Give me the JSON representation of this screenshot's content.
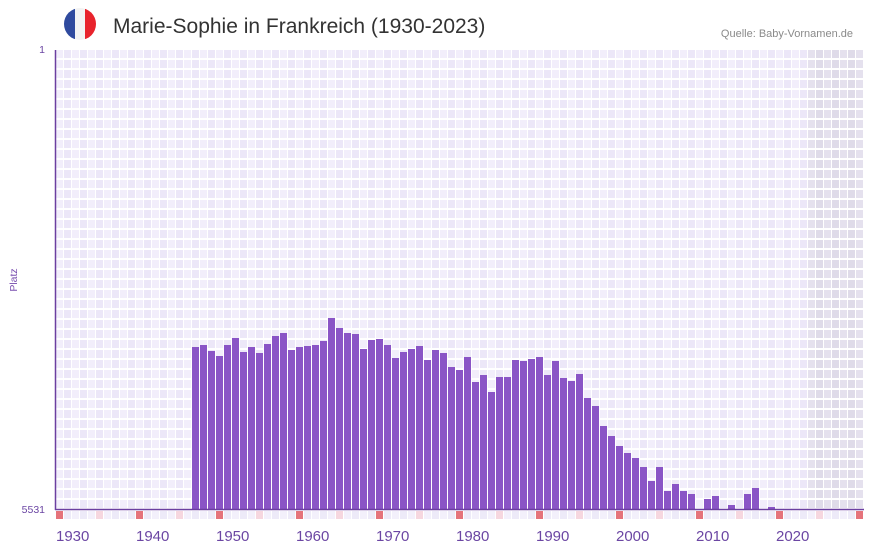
{
  "header": {
    "flag_icon": "france-flag-icon",
    "title": "Marie-Sophie in Frankreich (1930-2023)",
    "source": "Quelle: Baby-Vornamen.de"
  },
  "colors": {
    "bar": "#8a55c6",
    "axis": "#6b3fa0",
    "grid_a": "#f2eefb",
    "grid_b": "#ece7f8",
    "grid_future_a": "#e5e1ee",
    "grid_future_b": "#dfdbe9",
    "marker_decade": "#e5737b",
    "marker_half_decade": "#f6d7df",
    "marker_base_a": "#f3f0fb",
    "marker_base_b": "#edeaf8",
    "flag_blue": "#2f4a9e",
    "flag_white": "#f3f3f3",
    "flag_red": "#e8232c"
  },
  "chart_data": {
    "type": "bar",
    "title": "Marie-Sophie in Frankreich (1930-2023)",
    "source": "Quelle: Baby-Vornamen.de",
    "xlabel": "",
    "ylabel": "Platz",
    "y_inverted": true,
    "ylim": [
      5531,
      1
    ],
    "xlim": [
      1930,
      2030
    ],
    "data_range": [
      1930,
      2023
    ],
    "y_tick_labels": [
      "1",
      "5531"
    ],
    "x_tick_labels": [
      "1930",
      "1940",
      "1950",
      "1960",
      "1970",
      "1980",
      "1990",
      "2000",
      "2010",
      "2020"
    ],
    "grid": true,
    "legend": null,
    "categories": [
      1947,
      1948,
      1949,
      1950,
      1951,
      1952,
      1953,
      1954,
      1955,
      1956,
      1957,
      1958,
      1959,
      1960,
      1961,
      1962,
      1963,
      1964,
      1965,
      1966,
      1967,
      1968,
      1969,
      1970,
      1971,
      1972,
      1973,
      1974,
      1975,
      1976,
      1977,
      1978,
      1979,
      1980,
      1981,
      1982,
      1983,
      1984,
      1985,
      1986,
      1987,
      1988,
      1989,
      1990,
      1991,
      1992,
      1993,
      1994,
      1995,
      1996,
      1997,
      1998,
      1999,
      2000,
      2001,
      2002,
      2003,
      2004,
      2005,
      2006,
      2007,
      2008,
      2009,
      2010,
      2011,
      2012,
      2013,
      2014,
      2015,
      2016,
      2017,
      2018,
      2019
    ],
    "values": [
      3571,
      3547,
      3619,
      3680,
      3547,
      3463,
      3631,
      3571,
      3643,
      3535,
      3439,
      3403,
      3607,
      3571,
      3559,
      3547,
      3499,
      3223,
      3343,
      3403,
      3415,
      3595,
      3487,
      3475,
      3547,
      3704,
      3631,
      3595,
      3559,
      3728,
      3607,
      3643,
      3812,
      3848,
      3692,
      3992,
      3908,
      4112,
      3932,
      3932,
      3728,
      3740,
      3716,
      3692,
      3908,
      3740,
      3944,
      3980,
      3896,
      4185,
      4281,
      4521,
      4641,
      4762,
      4846,
      4906,
      5014,
      5182,
      5014,
      5303,
      5218,
      5303,
      5339,
      null,
      5399,
      5363,
      null,
      5471,
      null,
      5339,
      5267,
      null,
      5495
    ]
  }
}
